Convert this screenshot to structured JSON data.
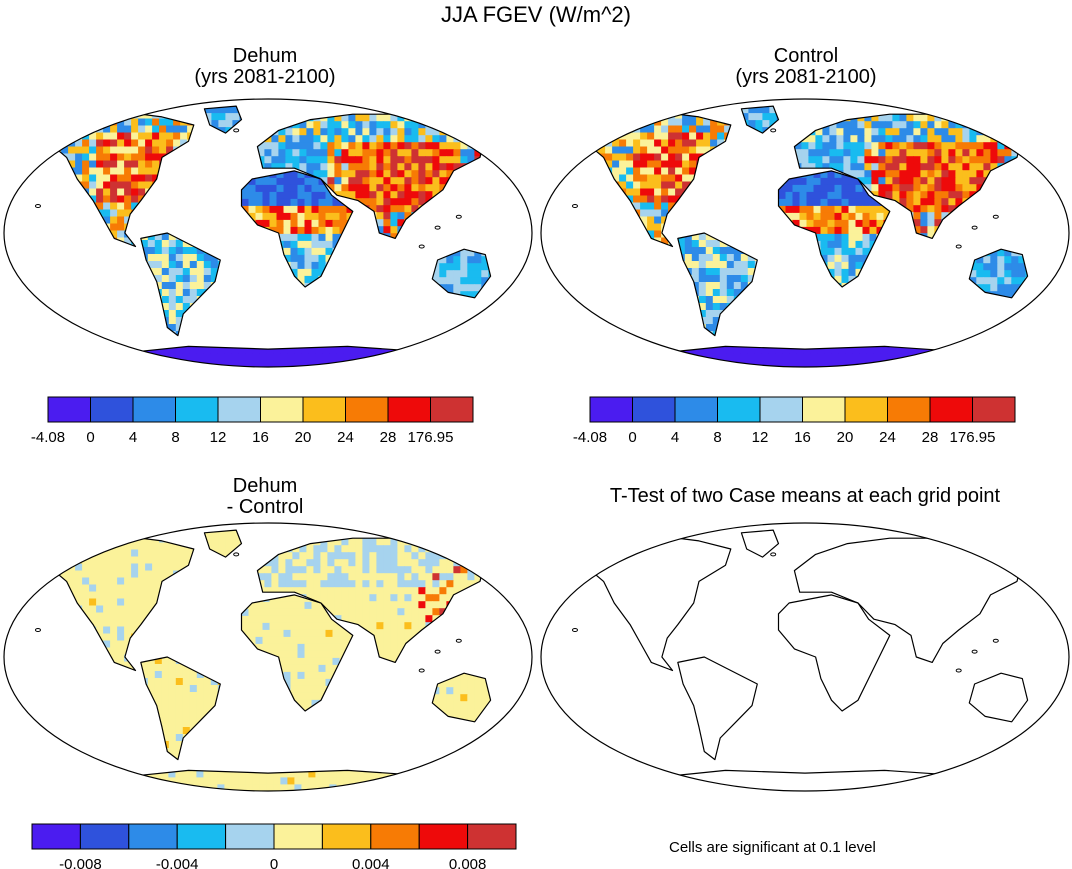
{
  "title": "JJA FGEV (W/m^2)",
  "panels": {
    "dehum": {
      "title_line1": "Dehum",
      "title_line2": "(yrs 2081-2100)"
    },
    "control": {
      "title_line1": "Control",
      "title_line2": "(yrs 2081-2100)"
    },
    "diff": {
      "title_line1": "Dehum",
      "title_line2": "- Control"
    },
    "ttest": {
      "title": "T-Test of two Case means at each grid point",
      "note": "Cells are significant at 0.1 level"
    }
  },
  "colorbar_main": {
    "colors": [
      "#4B1CF0",
      "#2F52DC",
      "#2D8BE8",
      "#19BBF0",
      "#A6D3EE",
      "#FBF29A",
      "#FBBE1C",
      "#F77B05",
      "#EE0A0A",
      "#CE3232"
    ],
    "labels": [
      "-4.08",
      "0",
      "4",
      "8",
      "12",
      "16",
      "20",
      "24",
      "28",
      "176.95"
    ]
  },
  "colorbar_diff": {
    "colors": [
      "#4B1CF0",
      "#2F52DC",
      "#2D8BE8",
      "#19BBF0",
      "#A6D3EE",
      "#FBF29A",
      "#FBBE1C",
      "#F77B05",
      "#EE0A0A",
      "#CE3232"
    ],
    "labels": [
      "-0.008",
      "-0.004",
      "0",
      "0.004",
      "0.008"
    ]
  }
}
